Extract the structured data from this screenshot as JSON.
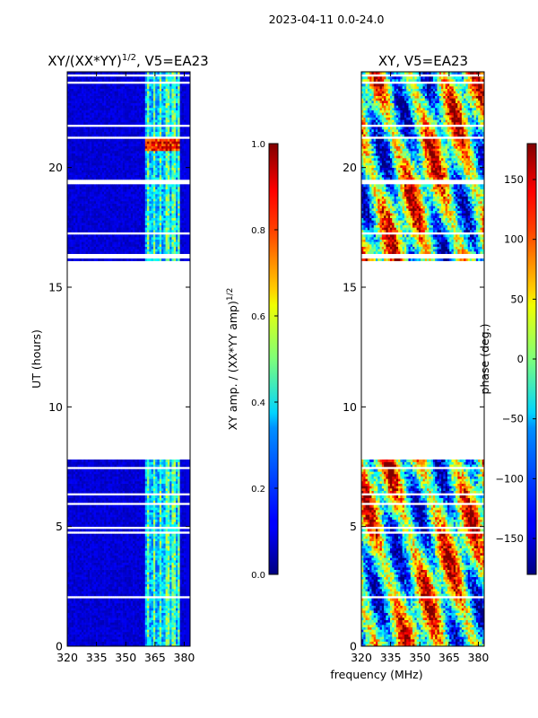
{
  "figure": {
    "suptitle": "2023-04-11 0.0-24.0",
    "shared_xlabel": "frequency (MHz)"
  },
  "chart_data": [
    {
      "type": "heatmap",
      "title": "XY/(XX*YY)^1/2, V5=EA23",
      "title_main": "XY/(XX*YY)",
      "title_sup": "1/2",
      "title_tail": ", V5=EA23",
      "xlabel": "frequency (MHz)",
      "ylabel": "UT (hours)",
      "xlim": [
        320,
        383
      ],
      "ylim": [
        0,
        24
      ],
      "xticks": [
        320,
        335,
        350,
        365,
        380
      ],
      "yticks": [
        0,
        5,
        10,
        15,
        20
      ],
      "data_gap_hours": [
        7.75,
        16.0
      ],
      "bright_channel_band_MHz": [
        360,
        378
      ],
      "colorbar": {
        "label": "XY amp. / (XX*YY amp)^1/2",
        "label_main": "XY amp. / (XX*YY amp)",
        "label_sup": "1/2",
        "colormap": "jet",
        "range": [
          0.0,
          1.0
        ],
        "ticks": [
          0.0,
          0.2,
          0.4,
          0.6,
          0.8,
          1.0
        ],
        "tick_labels": [
          "0.0",
          "0.2",
          "0.4",
          "0.6",
          "0.8",
          "1.0"
        ]
      }
    },
    {
      "type": "heatmap",
      "title": "XY, V5=EA23",
      "xlabel": "frequency (MHz)",
      "ylabel": "",
      "xlim": [
        320,
        383
      ],
      "ylim": [
        0,
        24
      ],
      "xticks": [
        320,
        335,
        350,
        365,
        380
      ],
      "yticks": [
        0,
        5,
        10,
        15,
        20
      ],
      "data_gap_hours": [
        7.75,
        16.0
      ],
      "colorbar": {
        "label": "phase (deg.)",
        "colormap": "jet",
        "range": [
          -180,
          180
        ],
        "ticks": [
          -150,
          -100,
          -50,
          0,
          50,
          100,
          150
        ],
        "tick_labels": [
          "−150",
          "−100",
          "−50",
          "0",
          "50",
          "100",
          "150"
        ]
      }
    }
  ]
}
